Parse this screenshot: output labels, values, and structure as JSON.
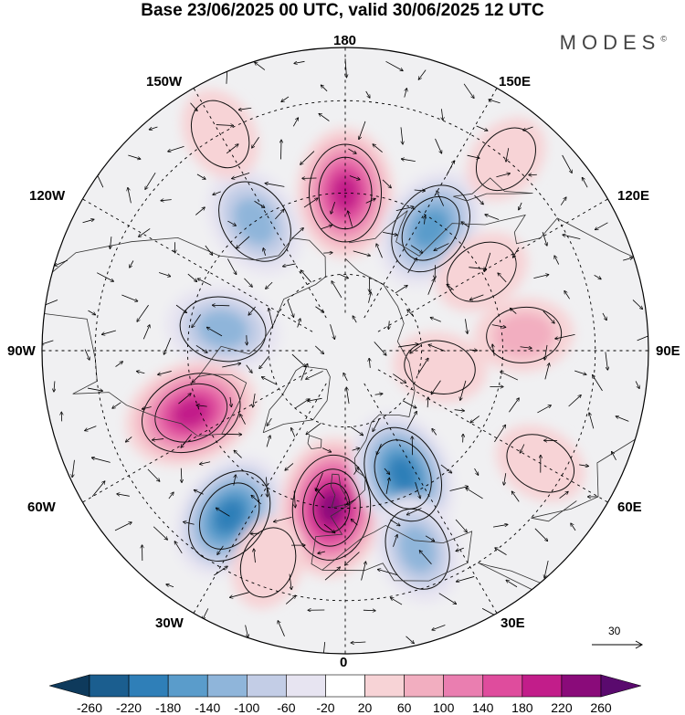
{
  "title": "Base 23/06/2025 00 UTC, valid 30/06/2025 12 UTC",
  "brand": "MODES",
  "brand_mark": "©",
  "longitude_labels": {
    "n180": "180",
    "w150": "150W",
    "e150": "150E",
    "w120": "120W",
    "e120": "120E",
    "w90": "90W",
    "e90": "90E",
    "w60": "60W",
    "e60": "60E",
    "w30": "30W",
    "e30": "30E",
    "s0": "0"
  },
  "vector_scale_label": "30",
  "colorbar": {
    "labels": [
      "-260",
      "-220",
      "-180",
      "-140",
      "-100",
      "-60",
      "-20",
      "20",
      "60",
      "100",
      "140",
      "180",
      "220",
      "260"
    ],
    "colors": [
      "#0e3a5c",
      "#1b5e8f",
      "#2f7fb8",
      "#5a9ccb",
      "#8fb5da",
      "#c3cde6",
      "#e7e4f1",
      "#ffffff",
      "#f7d3d6",
      "#f2aec0",
      "#ea7eb0",
      "#df4c9d",
      "#c21d8a",
      "#8a0b7a",
      "#5a0a6e"
    ]
  },
  "anomalies": [
    {
      "lat": 50,
      "lon": 180,
      "value": 200
    },
    {
      "lat": 52,
      "lon": 145,
      "value": -180
    },
    {
      "lat": 50,
      "lon": -145,
      "value": -140
    },
    {
      "lat": 58,
      "lon": -100,
      "value": -140
    },
    {
      "lat": 48,
      "lon": -68,
      "value": 220
    },
    {
      "lat": 40,
      "lon": -35,
      "value": -200
    },
    {
      "lat": 50,
      "lon": -5,
      "value": 240
    },
    {
      "lat": 55,
      "lon": 25,
      "value": -200
    },
    {
      "lat": 38,
      "lon": 20,
      "value": -120
    },
    {
      "lat": 45,
      "lon": 95,
      "value": 80
    },
    {
      "lat": 50,
      "lon": 120,
      "value": 70
    },
    {
      "lat": 35,
      "lon": 60,
      "value": 60
    },
    {
      "lat": 65,
      "lon": 80,
      "value": 60
    },
    {
      "lat": 30,
      "lon": -150,
      "value": 60
    },
    {
      "lat": 30,
      "lon": 140,
      "value": 50
    },
    {
      "lat": 35,
      "lon": -20,
      "value": 60
    }
  ]
}
